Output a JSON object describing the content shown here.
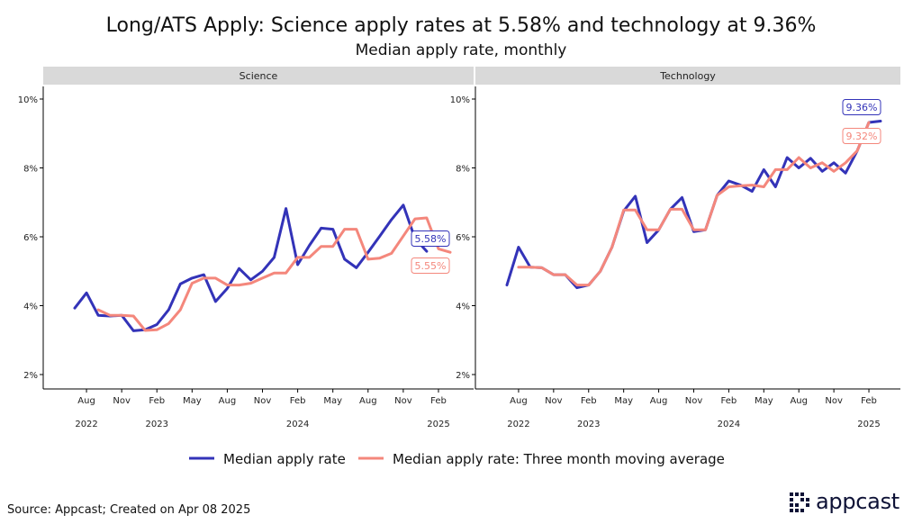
{
  "title": "Long/ATS Apply: Science apply rates at 5.58% and technology at 9.36%",
  "subtitle": "Median apply rate, monthly",
  "source": "Source: Appcast; Created on Apr 08 2025",
  "logo_text": "appcast",
  "colors": {
    "series_main": "#3333b8",
    "series_avg": "#f4877c",
    "strip_bg": "#d9d9d9"
  },
  "chart_data": {
    "type": "line",
    "facets": [
      "Science",
      "Technology"
    ],
    "ylim": [
      2,
      10
    ],
    "y_ticks": [
      2,
      4,
      6,
      8,
      10
    ],
    "y_tick_labels": [
      "2%",
      "4%",
      "6%",
      "8%",
      "10%"
    ],
    "x_start": "2022-06",
    "x_end": "2025-03",
    "x_ticks": [
      "2022-08",
      "2022-11",
      "2023-02",
      "2023-05",
      "2023-08",
      "2023-11",
      "2024-02",
      "2024-05",
      "2024-08",
      "2024-11",
      "2025-02"
    ],
    "x_tick_labels": [
      "Aug",
      "Nov",
      "Feb",
      "May",
      "Aug",
      "Nov",
      "Feb",
      "May",
      "Aug",
      "Nov",
      "Feb"
    ],
    "year_labels": [
      {
        "label": "2022",
        "at": "2022-08"
      },
      {
        "label": "2023",
        "at": "2023-02"
      },
      {
        "label": "2024",
        "at": "2024-02"
      },
      {
        "label": "2025",
        "at": "2025-02"
      }
    ],
    "legend_position": "bottom",
    "grid": false,
    "series": [
      {
        "name": "Median apply rate",
        "facet": "Science",
        "start": "2022-07",
        "values": [
          3.93,
          4.37,
          3.72,
          3.7,
          3.72,
          3.27,
          3.3,
          3.45,
          3.88,
          4.63,
          4.8,
          4.9,
          4.12,
          4.5,
          5.08,
          4.75,
          5.0,
          5.4,
          6.82,
          5.19,
          5.75,
          6.25,
          6.22,
          5.35,
          5.1,
          5.55,
          6.02,
          6.5,
          6.92,
          5.95,
          5.58
        ]
      },
      {
        "name": "Median apply rate: Three month moving average",
        "facet": "Science",
        "start": "2022-09",
        "values": [
          3.88,
          3.72,
          3.72,
          3.7,
          3.28,
          3.3,
          3.48,
          3.88,
          4.65,
          4.8,
          4.8,
          4.6,
          4.6,
          4.65,
          4.8,
          4.95,
          4.95,
          5.4,
          5.4,
          5.72,
          5.72,
          6.22,
          6.22,
          5.35,
          5.38,
          5.52,
          6.02,
          6.52,
          6.55,
          5.65,
          5.55
        ]
      },
      {
        "name": "Median apply rate",
        "facet": "Technology",
        "start": "2022-07",
        "values": [
          4.6,
          5.7,
          5.12,
          5.1,
          4.9,
          4.9,
          4.52,
          4.6,
          5.0,
          5.7,
          6.75,
          7.18,
          5.83,
          6.2,
          6.8,
          7.14,
          6.15,
          6.2,
          7.2,
          7.62,
          7.5,
          7.32,
          7.95,
          7.45,
          8.3,
          8.0,
          8.28,
          7.9,
          8.15,
          7.85,
          8.5,
          9.32,
          9.36
        ]
      },
      {
        "name": "Median apply rate: Three month moving average",
        "facet": "Technology",
        "start": "2022-08",
        "values": [
          5.12,
          5.12,
          5.1,
          4.9,
          4.9,
          4.6,
          4.6,
          5.0,
          5.7,
          6.78,
          6.78,
          6.2,
          6.2,
          6.8,
          6.8,
          6.2,
          6.2,
          7.2,
          7.45,
          7.48,
          7.5,
          7.45,
          7.95,
          7.95,
          8.3,
          8.0,
          8.15,
          7.9,
          8.15,
          8.5,
          9.32
        ]
      }
    ],
    "annotations": [
      {
        "facet": "Science",
        "label": "5.58%",
        "series": "Median apply rate",
        "value": 5.58
      },
      {
        "facet": "Science",
        "label": "5.55%",
        "series": "Median apply rate: Three month moving average",
        "value": 5.55
      },
      {
        "facet": "Technology",
        "label": "9.36%",
        "series": "Median apply rate",
        "value": 9.36
      },
      {
        "facet": "Technology",
        "label": "9.32%",
        "series": "Median apply rate: Three month moving average",
        "value": 9.32
      }
    ]
  }
}
